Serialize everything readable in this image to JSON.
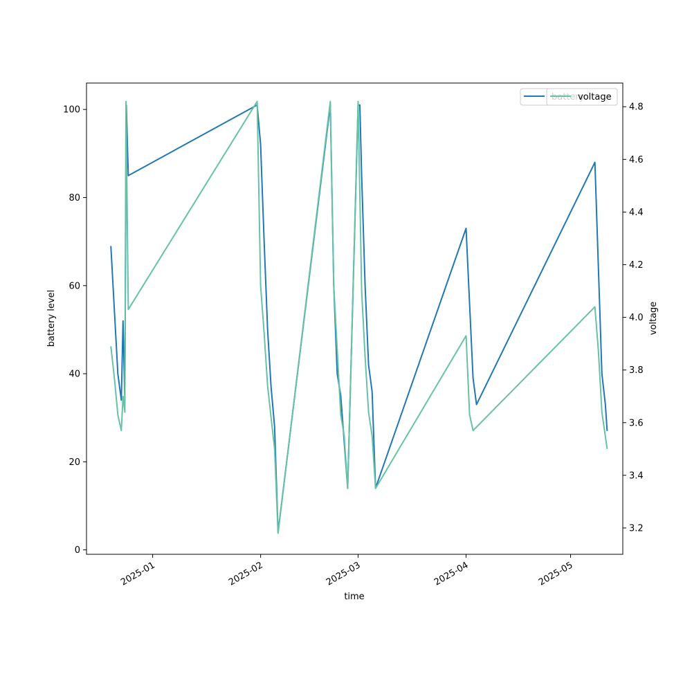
{
  "chart_data": {
    "type": "line",
    "xlabel": "time",
    "ylabel": "battery level",
    "y2label": "voltage",
    "xlim": [
      "2024-12-13",
      "2025-05-16"
    ],
    "ylim": [
      -1,
      106
    ],
    "y2lim": [
      3.1,
      4.89
    ],
    "x_ticks": [
      {
        "date": "2025-01-01",
        "label": "2025-01"
      },
      {
        "date": "2025-02-01",
        "label": "2025-02"
      },
      {
        "date": "2025-03-01",
        "label": "2025-03"
      },
      {
        "date": "2025-04-01",
        "label": "2025-04"
      },
      {
        "date": "2025-05-01",
        "label": "2025-05"
      }
    ],
    "y_ticks": [
      0,
      20,
      40,
      60,
      80,
      100
    ],
    "y2_ticks": [
      "3.2",
      "3.4",
      "3.6",
      "3.8",
      "4.0",
      "4.2",
      "4.4",
      "4.6",
      "4.8"
    ],
    "legend": {
      "position": "top-right",
      "entries": [
        "battery",
        "voltage"
      ]
    },
    "series": [
      {
        "name": "battery",
        "axis": "left",
        "color": "#1f77b4",
        "points": [
          [
            "2024-12-20",
            69
          ],
          [
            "2024-12-22",
            40
          ],
          [
            "2024-12-23",
            34
          ],
          [
            "2024-12-23T12:00",
            52
          ],
          [
            "2024-12-24",
            34
          ],
          [
            "2024-12-24T10:00",
            101
          ],
          [
            "2024-12-25",
            85
          ],
          [
            "2025-01-31",
            101
          ],
          [
            "2025-02-01",
            92
          ],
          [
            "2025-02-02",
            70
          ],
          [
            "2025-02-03",
            50
          ],
          [
            "2025-02-04",
            37
          ],
          [
            "2025-02-05",
            28
          ],
          [
            "2025-02-06",
            4
          ],
          [
            "2025-02-21",
            101
          ],
          [
            "2025-02-22",
            60
          ],
          [
            "2025-02-23",
            40
          ],
          [
            "2025-02-24",
            35
          ],
          [
            "2025-02-26",
            14
          ],
          [
            "2025-03-01",
            101
          ],
          [
            "2025-03-01T12:00",
            101
          ],
          [
            "2025-03-02",
            85
          ],
          [
            "2025-03-03",
            60
          ],
          [
            "2025-03-04",
            42
          ],
          [
            "2025-03-05",
            36
          ],
          [
            "2025-03-06",
            14
          ],
          [
            "2025-04-01",
            73
          ],
          [
            "2025-04-03",
            39
          ],
          [
            "2025-04-04",
            33
          ],
          [
            "2025-05-08",
            88
          ],
          [
            "2025-05-10",
            40
          ],
          [
            "2025-05-11",
            33
          ],
          [
            "2025-05-11T12:00",
            27
          ]
        ]
      },
      {
        "name": "voltage",
        "axis": "right",
        "color": "#66c2a5",
        "points": [
          [
            "2024-12-20",
            3.89
          ],
          [
            "2024-12-21",
            3.77
          ],
          [
            "2024-12-22",
            3.63
          ],
          [
            "2024-12-23",
            3.57
          ],
          [
            "2024-12-23T12:00",
            3.7
          ],
          [
            "2024-12-24",
            3.64
          ],
          [
            "2024-12-24T08:00",
            4.82
          ],
          [
            "2024-12-25",
            4.03
          ],
          [
            "2025-01-31",
            4.82
          ],
          [
            "2025-02-01",
            4.12
          ],
          [
            "2025-02-02",
            3.94
          ],
          [
            "2025-02-03",
            3.74
          ],
          [
            "2025-02-04",
            3.62
          ],
          [
            "2025-02-05",
            3.5
          ],
          [
            "2025-02-06",
            3.18
          ],
          [
            "2025-02-21",
            4.82
          ],
          [
            "2025-02-22",
            4.12
          ],
          [
            "2025-02-24",
            3.63
          ],
          [
            "2025-02-25",
            3.55
          ],
          [
            "2025-02-26",
            3.35
          ],
          [
            "2025-03-01",
            4.82
          ],
          [
            "2025-03-02",
            4.1
          ],
          [
            "2025-03-03",
            3.85
          ],
          [
            "2025-03-04",
            3.64
          ],
          [
            "2025-03-05",
            3.55
          ],
          [
            "2025-03-06",
            3.35
          ],
          [
            "2025-04-01",
            3.93
          ],
          [
            "2025-04-02",
            3.63
          ],
          [
            "2025-04-03",
            3.57
          ],
          [
            "2025-05-08",
            4.04
          ],
          [
            "2025-05-09",
            3.87
          ],
          [
            "2025-05-10",
            3.64
          ],
          [
            "2025-05-11T12:00",
            3.5
          ]
        ]
      }
    ]
  }
}
